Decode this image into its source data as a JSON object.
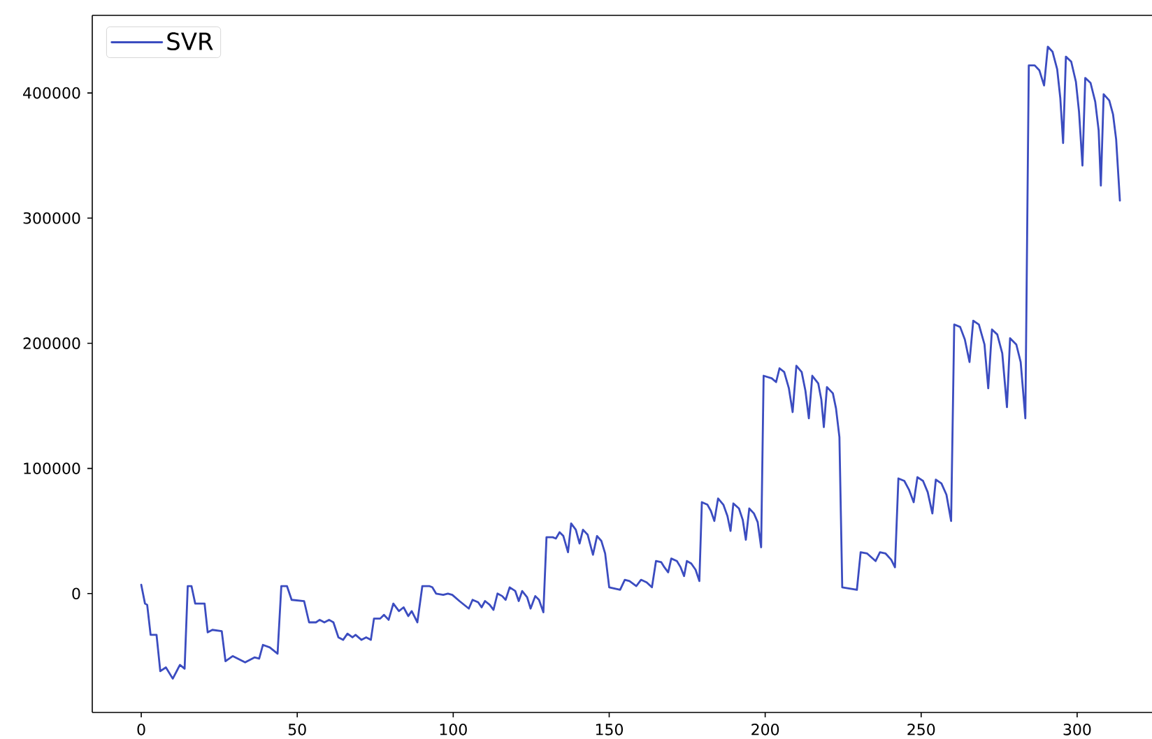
{
  "chart_data": {
    "type": "line",
    "x": [
      0,
      1.2,
      1.9,
      3.0,
      4.9,
      6.1,
      7.9,
      10.1,
      12.4,
      13.9,
      14.9,
      16.1,
      17.3,
      20.3,
      21.3,
      22.8,
      25.8,
      27.0,
      29.3,
      33.3,
      36.3,
      37.8,
      39.0,
      41.2,
      43.7,
      44.9,
      46.7,
      48.2,
      52.2,
      53.8,
      56.0,
      57.2,
      58.7,
      60.2,
      61.6,
      63.2,
      64.7,
      66.1,
      67.7,
      68.7,
      70.6,
      72.1,
      73.6,
      74.6,
      76.6,
      77.8,
      79.3,
      80.8,
      82.6,
      84.1,
      85.6,
      86.7,
      88.5,
      90.1,
      92.3,
      93.3,
      94.5,
      96.8,
      98.3,
      99.7,
      102.0,
      105.0,
      106.2,
      108.0,
      109.1,
      110.2,
      111.7,
      112.9,
      114.2,
      115.7,
      116.8,
      118.1,
      119.9,
      121.0,
      122.1,
      123.7,
      124.8,
      126.3,
      127.5,
      128.9,
      129.9,
      131.9,
      132.9,
      134.1,
      135.3,
      136.8,
      137.8,
      139.3,
      140.5,
      141.6,
      143.1,
      144.8,
      146.1,
      147.5,
      148.7,
      150.0,
      153.5,
      155.0,
      156.5,
      158.7,
      160.2,
      162.0,
      163.7,
      165.0,
      166.7,
      167.7,
      168.9,
      169.9,
      171.7,
      172.9,
      174.0,
      174.9,
      176.3,
      177.7,
      178.9,
      179.7,
      181.5,
      182.6,
      183.7,
      184.9,
      186.6,
      187.9,
      188.9,
      189.8,
      191.6,
      192.8,
      193.8,
      194.9,
      196.4,
      197.6,
      198.7,
      199.5,
      202.1,
      203.5,
      204.6,
      206.1,
      207.6,
      208.8,
      210.0,
      211.7,
      212.9,
      214.0,
      215.1,
      217.0,
      218.0,
      218.8,
      219.8,
      221.7,
      222.7,
      223.8,
      224.7,
      229.4,
      230.6,
      232.7,
      235.4,
      236.8,
      238.6,
      240.4,
      241.6,
      242.7,
      244.6,
      246.1,
      247.6,
      248.8,
      250.6,
      252.1,
      253.6,
      254.7,
      256.5,
      258.1,
      259.6,
      260.6,
      262.5,
      264.0,
      265.5,
      266.7,
      268.5,
      270.3,
      271.5,
      272.7,
      274.4,
      276.0,
      277.5,
      278.5,
      280.5,
      281.9,
      283.4,
      284.5,
      286.4,
      287.9,
      289.4,
      290.6,
      292.1,
      293.6,
      294.6,
      295.5,
      296.4,
      298.1,
      299.6,
      300.6,
      301.7,
      302.6,
      304.3,
      305.8,
      306.9,
      307.6,
      308.5,
      310.3,
      311.5,
      312.5,
      313.7
    ],
    "series": [
      {
        "name": "SVR",
        "color": "#3b4cc0",
        "values": [
          7000,
          -8000,
          -9000,
          -33000,
          -33000,
          -62000,
          -59000,
          -68000,
          -57000,
          -60000,
          6000,
          6000,
          -8000,
          -8000,
          -31000,
          -29000,
          -30000,
          -54000,
          -50000,
          -55000,
          -51000,
          -52000,
          -41000,
          -43000,
          -48000,
          6000,
          6000,
          -5000,
          -6000,
          -23000,
          -23000,
          -21000,
          -23000,
          -21000,
          -23000,
          -35000,
          -37000,
          -32000,
          -35000,
          -33000,
          -37000,
          -35000,
          -37000,
          -20000,
          -20000,
          -17000,
          -21000,
          -8000,
          -14000,
          -11000,
          -18000,
          -14000,
          -23000,
          6000,
          6000,
          5000,
          0,
          -1000,
          0,
          -1000,
          -6000,
          -12000,
          -5000,
          -7000,
          -11000,
          -6000,
          -9000,
          -13000,
          0,
          -2000,
          -5000,
          5000,
          2000,
          -6000,
          2000,
          -3000,
          -12000,
          -2000,
          -5000,
          -15000,
          45000,
          45000,
          44000,
          49000,
          46000,
          33000,
          56000,
          51000,
          40000,
          51000,
          47000,
          31000,
          46000,
          42000,
          32000,
          5000,
          3000,
          11000,
          10000,
          6000,
          11000,
          9000,
          5000,
          26000,
          25000,
          21000,
          17000,
          28000,
          26000,
          21000,
          14000,
          26000,
          24000,
          19000,
          10000,
          73000,
          71000,
          66000,
          58000,
          76000,
          71000,
          62000,
          50000,
          72000,
          68000,
          59000,
          43000,
          68000,
          64000,
          57000,
          37000,
          174000,
          172000,
          169000,
          180000,
          177000,
          164000,
          145000,
          182000,
          177000,
          162000,
          140000,
          174000,
          168000,
          155000,
          133000,
          165000,
          160000,
          148000,
          125000,
          5000,
          3000,
          33000,
          32000,
          26000,
          33000,
          32000,
          27000,
          21000,
          92000,
          90000,
          83000,
          73000,
          93000,
          90000,
          81000,
          64000,
          91000,
          88000,
          79000,
          58000,
          215000,
          213000,
          203000,
          185000,
          218000,
          215000,
          199000,
          164000,
          211000,
          207000,
          192000,
          149000,
          204000,
          199000,
          185000,
          140000,
          422000,
          422000,
          418000,
          406000,
          437000,
          433000,
          419000,
          396000,
          360000,
          429000,
          425000,
          409000,
          385000,
          342000,
          412000,
          408000,
          393000,
          370000,
          326000,
          399000,
          394000,
          383000,
          363000,
          314000
        ]
      }
    ],
    "xlim": [
      -15.7,
      324
    ],
    "ylim": [
      -95000,
      462000
    ],
    "xticks": [
      0,
      50,
      100,
      150,
      200,
      250,
      300
    ],
    "yticks": [
      0,
      100000,
      200000,
      300000,
      400000
    ],
    "legend": "top left"
  }
}
